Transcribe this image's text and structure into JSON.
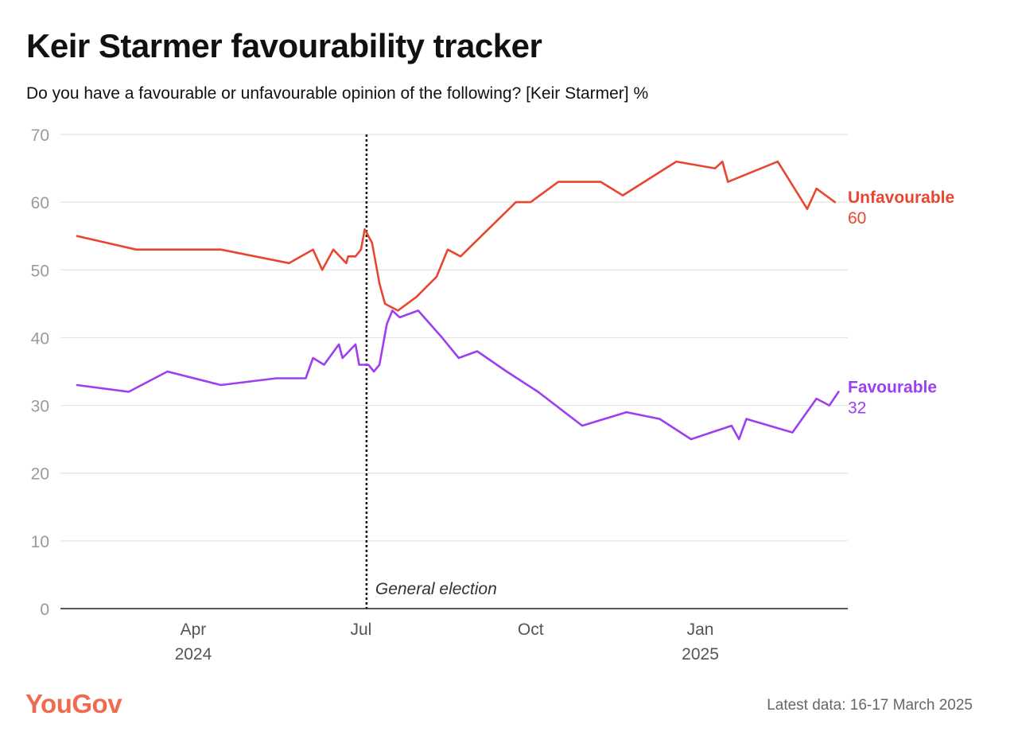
{
  "header": {
    "title": "Keir Starmer favourability tracker",
    "subtitle": "Do you have a favourable or unfavourable opinion of the following? [Keir Starmer] %"
  },
  "footer": {
    "brand": "YouGov",
    "latest": "Latest data: 16-17 March 2025"
  },
  "chart_data": {
    "type": "line",
    "title": "Keir Starmer favourability tracker",
    "ylabel": "",
    "xlabel": "",
    "ylim": [
      0,
      70
    ],
    "xlim": [
      "2024-01-20",
      "2025-03-22"
    ],
    "y_ticks": [
      0,
      10,
      20,
      30,
      40,
      50,
      60,
      70
    ],
    "x_ticks": [
      {
        "date": "2024-04-01",
        "label": "Apr",
        "year": "2024"
      },
      {
        "date": "2024-07-01",
        "label": "Jul",
        "year": ""
      },
      {
        "date": "2024-10-01",
        "label": "Oct",
        "year": ""
      },
      {
        "date": "2025-01-01",
        "label": "Jan",
        "year": "2025"
      }
    ],
    "grid": true,
    "annotations": [
      {
        "date": "2024-07-04",
        "label": "General election"
      }
    ],
    "series": [
      {
        "name": "Unfavourable",
        "color": "#e8462f",
        "end_label": "60",
        "points": [
          [
            "2024-01-29",
            55
          ],
          [
            "2024-03-01",
            53
          ],
          [
            "2024-04-16",
            53
          ],
          [
            "2024-05-23",
            51
          ],
          [
            "2024-06-05",
            53
          ],
          [
            "2024-06-10",
            50
          ],
          [
            "2024-06-16",
            53
          ],
          [
            "2024-06-23",
            51
          ],
          [
            "2024-06-24",
            52
          ],
          [
            "2024-06-28",
            52
          ],
          [
            "2024-07-01",
            53
          ],
          [
            "2024-07-03",
            56
          ],
          [
            "2024-07-07",
            54
          ],
          [
            "2024-07-09",
            51
          ],
          [
            "2024-07-11",
            48
          ],
          [
            "2024-07-14",
            45
          ],
          [
            "2024-07-21",
            44
          ],
          [
            "2024-07-31",
            46
          ],
          [
            "2024-08-11",
            49
          ],
          [
            "2024-08-17",
            53
          ],
          [
            "2024-08-24",
            52
          ],
          [
            "2024-09-08",
            56
          ],
          [
            "2024-09-23",
            60
          ],
          [
            "2024-10-01",
            60
          ],
          [
            "2024-10-16",
            63
          ],
          [
            "2024-11-08",
            63
          ],
          [
            "2024-11-20",
            61
          ],
          [
            "2024-12-19",
            66
          ],
          [
            "2025-01-09",
            65
          ],
          [
            "2025-01-13",
            66
          ],
          [
            "2025-01-16",
            63
          ],
          [
            "2025-02-12",
            66
          ],
          [
            "2025-02-28",
            59
          ],
          [
            "2025-03-05",
            62
          ],
          [
            "2025-03-15",
            60
          ]
        ]
      },
      {
        "name": "Favourable",
        "color": "#9d3ef0",
        "end_label": "32",
        "points": [
          [
            "2024-01-29",
            33
          ],
          [
            "2024-02-26",
            32
          ],
          [
            "2024-03-18",
            35
          ],
          [
            "2024-04-16",
            33
          ],
          [
            "2024-05-16",
            34
          ],
          [
            "2024-06-01",
            34
          ],
          [
            "2024-06-05",
            37
          ],
          [
            "2024-06-11",
            36
          ],
          [
            "2024-06-19",
            39
          ],
          [
            "2024-06-21",
            37
          ],
          [
            "2024-06-28",
            39
          ],
          [
            "2024-06-30",
            36
          ],
          [
            "2024-07-05",
            36
          ],
          [
            "2024-07-08",
            35
          ],
          [
            "2024-07-11",
            36
          ],
          [
            "2024-07-15",
            42
          ],
          [
            "2024-07-18",
            44
          ],
          [
            "2024-07-22",
            43
          ],
          [
            "2024-08-01",
            44
          ],
          [
            "2024-08-14",
            40
          ],
          [
            "2024-08-23",
            37
          ],
          [
            "2024-09-02",
            38
          ],
          [
            "2024-09-18",
            35
          ],
          [
            "2024-10-05",
            32
          ],
          [
            "2024-10-29",
            27
          ],
          [
            "2024-11-22",
            29
          ],
          [
            "2024-12-10",
            28
          ],
          [
            "2024-12-27",
            25
          ],
          [
            "2025-01-18",
            27
          ],
          [
            "2025-01-22",
            25
          ],
          [
            "2025-01-26",
            28
          ],
          [
            "2025-02-20",
            26
          ],
          [
            "2025-03-05",
            31
          ],
          [
            "2025-03-12",
            30
          ],
          [
            "2025-03-17",
            32
          ]
        ]
      }
    ]
  }
}
